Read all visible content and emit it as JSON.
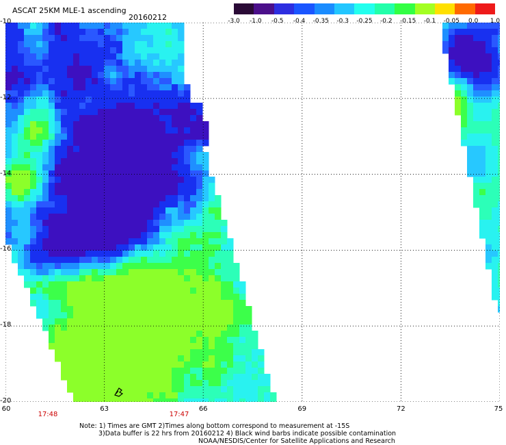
{
  "header": {
    "title": "ASCAT 25KM MLE-1 ascending",
    "date": "20160212"
  },
  "colorbar": {
    "labels": [
      "-3.0",
      "-1.0",
      "-0.5",
      "-0.4",
      "-0.35",
      "-0.3",
      "-0.25",
      "-0.2",
      "-0.15",
      "-0.1",
      "-0.05",
      "0.0",
      "1.0"
    ],
    "colors": [
      "#2a0a36",
      "#4b0f8a",
      "#2d2ee0",
      "#1a55ff",
      "#1a8cff",
      "#22c6ff",
      "#22ffee",
      "#22ffaa",
      "#33ff44",
      "#a3ff22",
      "#ffe000",
      "#ff6a00",
      "#ee1a1a"
    ]
  },
  "map": {
    "lat_labels": [
      "-10",
      "-12",
      "-14",
      "-16",
      "-18",
      "-20"
    ],
    "lon_labels": [
      "60",
      "63",
      "66",
      "69",
      "72",
      "75"
    ],
    "lat_range": [
      -20,
      -10
    ],
    "lon_range": [
      60,
      75
    ],
    "grid": "dotted",
    "colors": {
      "violet": "#3d10c0",
      "deep_blue": "#1830f0",
      "blue": "#2a58ff",
      "mid_blue": "#1f8fff",
      "light_blue": "#27c8ff",
      "cyan": "#29f2f0",
      "cyan_green": "#2cffb8",
      "green": "#3cff4a",
      "yellow_green": "#8cff2a"
    },
    "wind_barb_icon": "black wind barb"
  },
  "time_labels": [
    {
      "text": "17:48"
    },
    {
      "text": "17:47"
    }
  ],
  "notes": {
    "line1": "Note: 1) Times are GMT 2)Times along bottom correspond to measurement at -15S",
    "line2": "3)Data buffer is 22 hrs from 20160212 4) Black wind barbs indicate possible contamination",
    "line3": "NOAA/NESDIS/Center for Satellite Applications and Research"
  }
}
